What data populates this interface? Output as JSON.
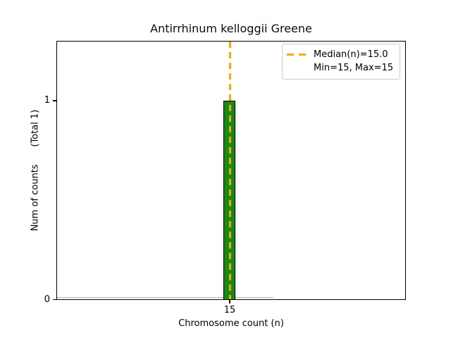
{
  "chart_data": {
    "type": "bar",
    "subtype": "histogram",
    "title": "Antirrhinum kelloggii Greene",
    "xlabel": "Chromosome count (n)",
    "ylabel": "Num of counts      (Total 1)",
    "categories": [
      15
    ],
    "values": [
      1
    ],
    "total_counts": 1,
    "x_tick_labels": [
      "15"
    ],
    "y_tick_labels": [
      "0",
      "1"
    ],
    "ylim": [
      0,
      1.3
    ],
    "xlim_approx": [
      0.5,
      29.5
    ],
    "grid": false,
    "bar_fill_color": "#178a17",
    "bar_edge_color": "#000000",
    "zero_bins_edge_color": "#aeaeae",
    "median_line": {
      "x": 15.0,
      "color": "#ffa500",
      "style": "dashed",
      "orientation": "vertical"
    },
    "legend": {
      "position": "upper right",
      "border_color": "#cccccc",
      "entries": [
        {
          "icon": "orange-dashed-line",
          "label": "Median(n)=15.0"
        },
        {
          "icon": "none",
          "label": "Min=15, Max=15"
        }
      ]
    },
    "stats": {
      "median": 15.0,
      "min": 15,
      "max": 15
    }
  }
}
